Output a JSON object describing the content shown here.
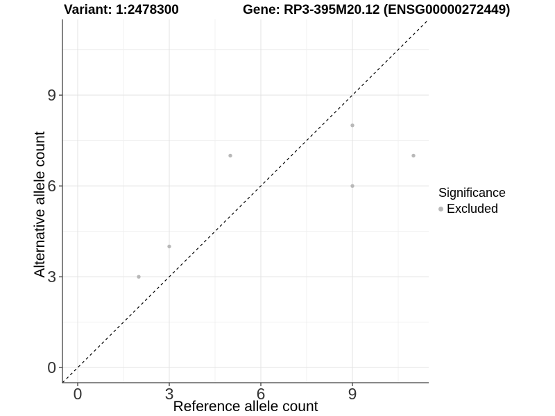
{
  "titles": {
    "variant": "Variant: 1:2478300",
    "gene": "Gene: RP3-395M20.12 (ENSG00000272449)"
  },
  "chart_data": {
    "type": "scatter",
    "title": "Variant: 1:2478300 | Gene: RP3-395M20.12 (ENSG00000272449)",
    "xlabel": "Reference allele count",
    "ylabel": "Alternative allele count",
    "xlim": [
      -0.5,
      11.5
    ],
    "ylim": [
      -0.5,
      11.5
    ],
    "x_ticks": [
      0,
      3,
      6,
      9
    ],
    "y_ticks": [
      0,
      3,
      6,
      9
    ],
    "x_minor_ticks": [
      1.5,
      4.5,
      7.5,
      10.5
    ],
    "y_minor_ticks": [
      1.5,
      4.5,
      7.5,
      10.5
    ],
    "grid": true,
    "series": [
      {
        "name": "Excluded",
        "color": "#b8b8b8",
        "points": [
          {
            "x": 2,
            "y": 3
          },
          {
            "x": 3,
            "y": 4
          },
          {
            "x": 5,
            "y": 7
          },
          {
            "x": 9,
            "y": 6
          },
          {
            "x": 9,
            "y": 8
          },
          {
            "x": 11,
            "y": 7
          }
        ]
      }
    ],
    "reference_line": {
      "type": "identity",
      "from": [
        -0.5,
        -0.5
      ],
      "to": [
        11.5,
        11.5
      ],
      "style": "dashed",
      "color": "#000000"
    },
    "legend": {
      "title": "Significance",
      "position": "right",
      "entries": [
        {
          "label": "Excluded",
          "color": "#b8b8b8"
        }
      ]
    },
    "colors": {
      "major_grid": "#e3e3e3",
      "minor_grid": "#f0f0f0",
      "axis_line": "#404040",
      "tick_mark": "#333333",
      "tick_label": "#333333",
      "point": "#b8b8b8",
      "background": "#ffffff"
    }
  }
}
